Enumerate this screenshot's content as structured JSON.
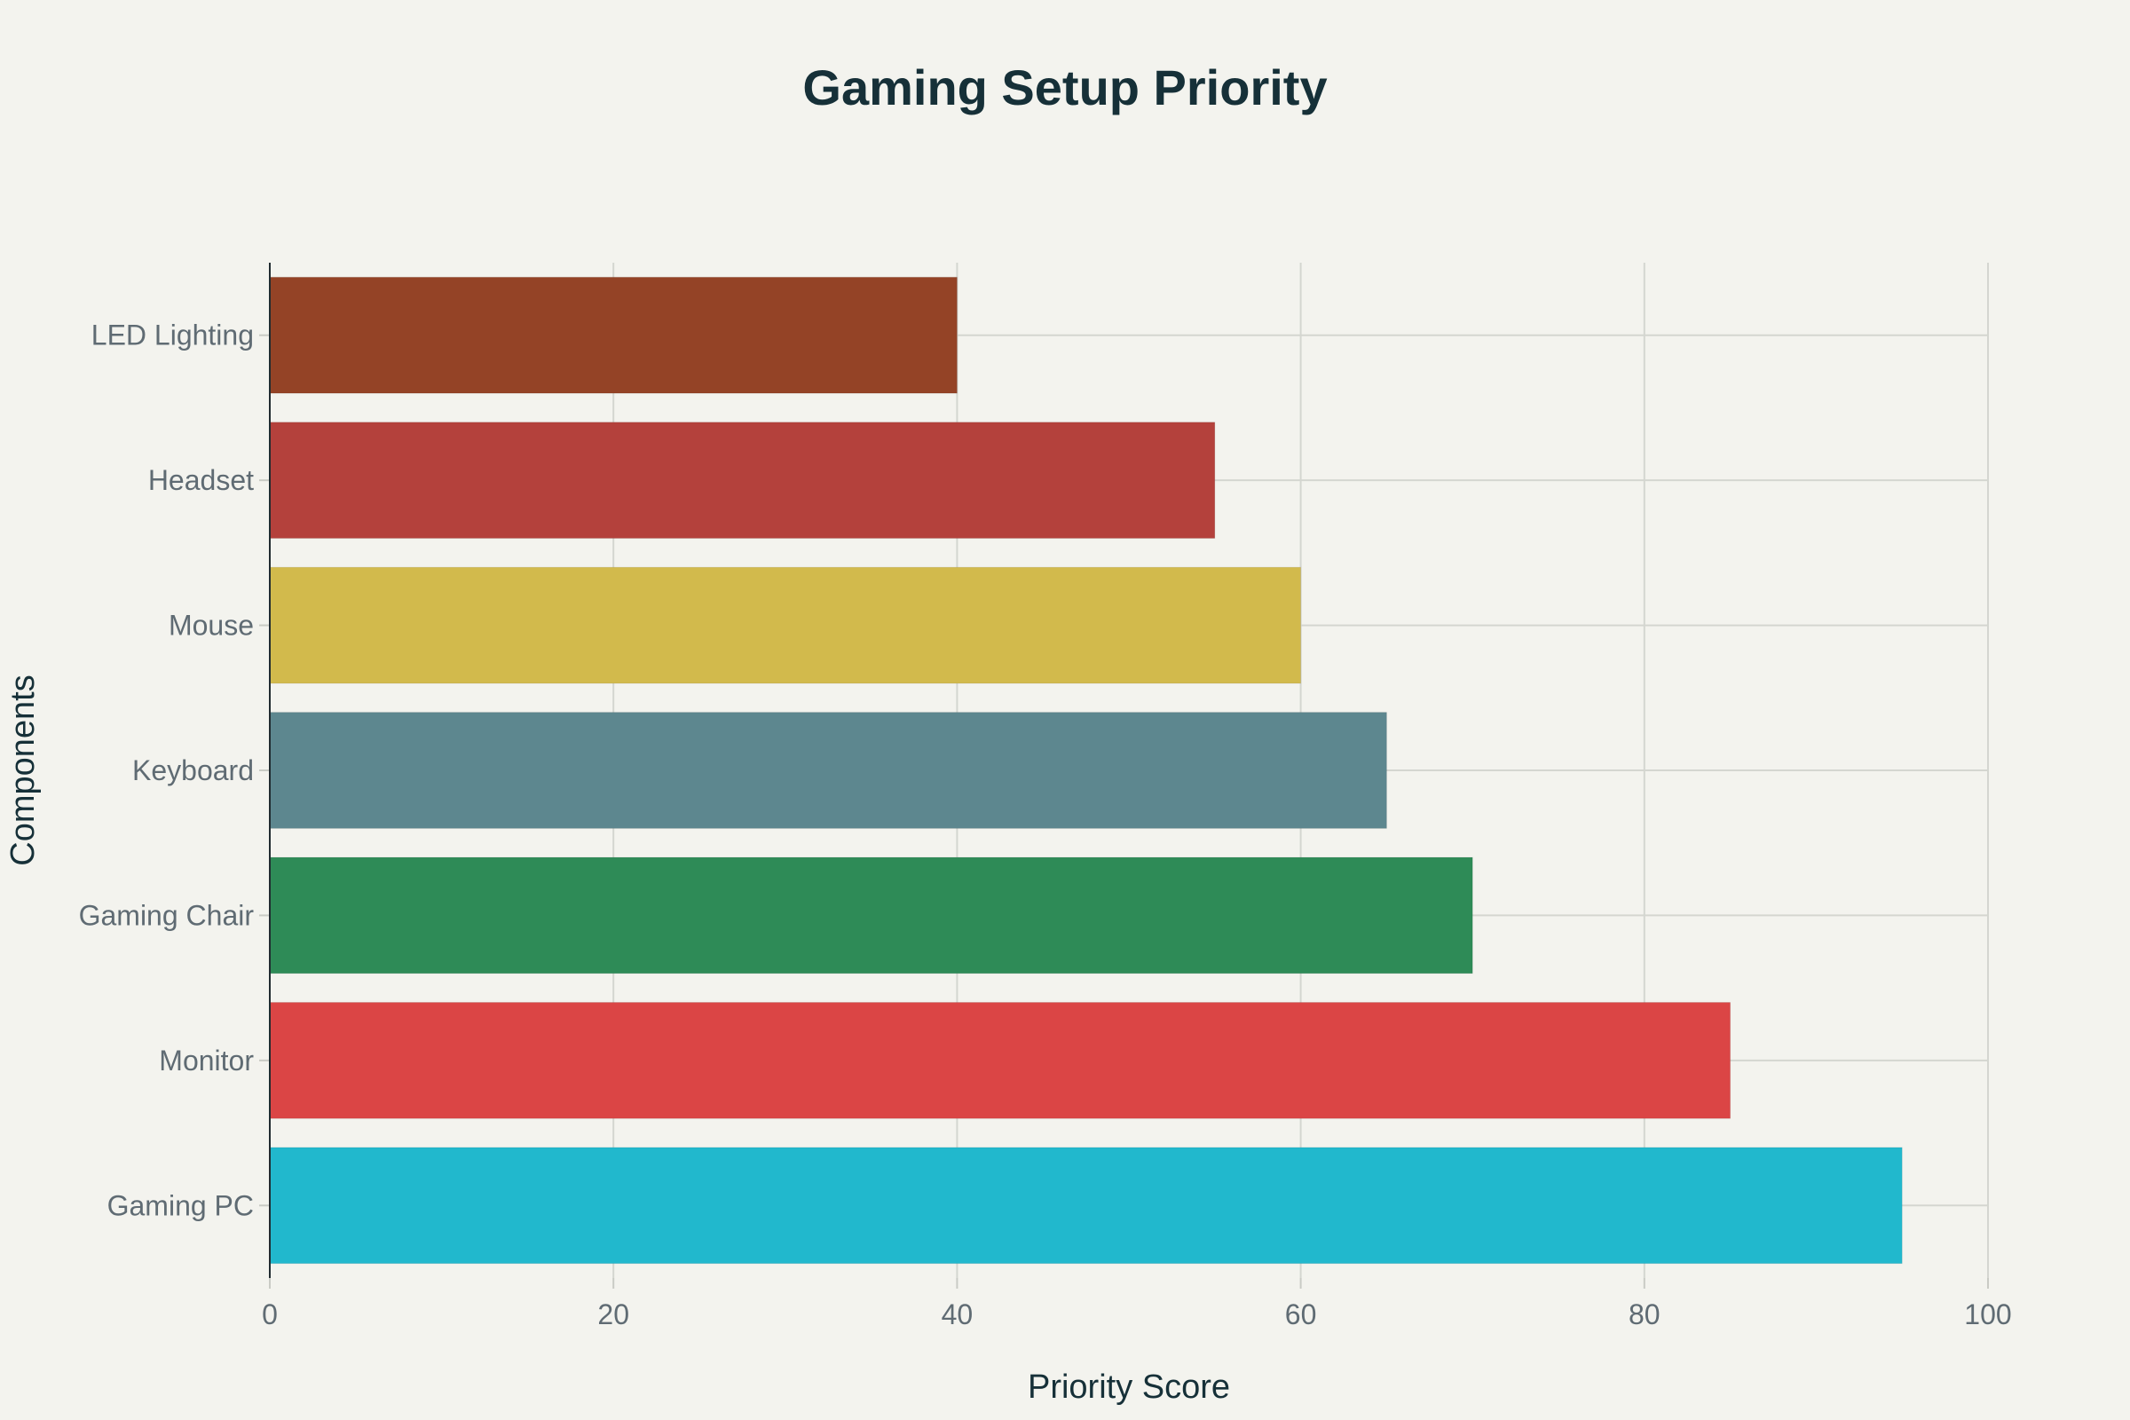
{
  "chart_data": {
    "type": "bar",
    "orientation": "horizontal",
    "title": "Gaming Setup Priority",
    "xlabel": "Priority Score",
    "ylabel": "Components",
    "xlim": [
      0,
      100
    ],
    "xticks": [
      "0",
      "20",
      "40",
      "60",
      "80",
      "100"
    ],
    "grid": true,
    "categories": [
      "LED Lighting",
      "Headset",
      "Mouse",
      "Keyboard",
      "Gaming Chair",
      "Monitor",
      "Gaming PC"
    ],
    "values": [
      40,
      55,
      60,
      65,
      70,
      85,
      95
    ],
    "colors": [
      "#944326",
      "#b4413c",
      "#d2ba4c",
      "#5d878f",
      "#2e8b57",
      "#db4545",
      "#21b8cd"
    ]
  }
}
